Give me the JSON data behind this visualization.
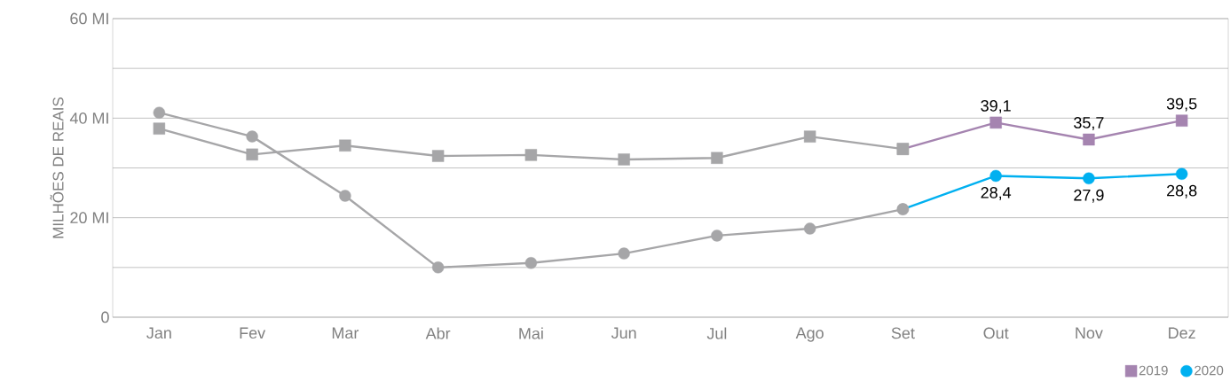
{
  "chart_data": {
    "type": "line",
    "ylabel": "MILHÕES DE REAIS",
    "categories": [
      "Jan",
      "Fev",
      "Mar",
      "Abr",
      "Mai",
      "Jun",
      "Jul",
      "Ago",
      "Set",
      "Out",
      "Nov",
      "Dez"
    ],
    "series": [
      {
        "color": "#a6a6a8",
        "marker": "square",
        "values": [
          37.9,
          32.7,
          34.5,
          32.4,
          32.6,
          31.7,
          32.0,
          36.3,
          33.8,
          null,
          null,
          null
        ]
      },
      {
        "color": "#a6a6a8",
        "marker": "circle",
        "values": [
          41.1,
          36.3,
          24.4,
          10.0,
          10.9,
          12.8,
          16.4,
          17.8,
          21.7,
          null,
          null,
          null
        ]
      },
      {
        "name": "2019",
        "color": "#a584b0",
        "marker": "square",
        "colors": [
          null,
          null,
          null,
          null,
          null,
          null,
          null,
          null,
          "#a6a6a8",
          "#a584b0",
          "#a584b0",
          "#a584b0"
        ],
        "values": [
          null,
          null,
          null,
          null,
          null,
          null,
          null,
          null,
          33.8,
          39.1,
          35.7,
          39.5
        ],
        "value_labels": [
          null,
          null,
          null,
          null,
          null,
          null,
          null,
          null,
          null,
          "39,1",
          "35,7",
          "39,5"
        ]
      },
      {
        "name": "2020",
        "color": "#00b0f0",
        "marker": "circle",
        "colors": [
          null,
          null,
          null,
          null,
          null,
          null,
          null,
          null,
          "#a6a6a8",
          "#00b0f0",
          "#00b0f0",
          "#00b0f0"
        ],
        "values": [
          null,
          null,
          null,
          null,
          null,
          null,
          null,
          null,
          21.7,
          28.4,
          27.9,
          28.8
        ],
        "value_labels": [
          null,
          null,
          null,
          null,
          null,
          null,
          null,
          null,
          null,
          "28,4",
          "27,9",
          "28,8"
        ]
      }
    ],
    "ylim": [
      0,
      60
    ],
    "yticks": [
      0,
      {
        "value": 10,
        "label": null
      },
      {
        "value": 20,
        "label": "20 MI"
      },
      {
        "value": 30,
        "label": null
      },
      {
        "value": 40,
        "label": "40 MI"
      },
      {
        "value": 50,
        "label": null
      },
      {
        "value": 60,
        "label": "60 MI"
      }
    ],
    "grid": "y",
    "legend": "bottom right",
    "line_style": "solid"
  }
}
